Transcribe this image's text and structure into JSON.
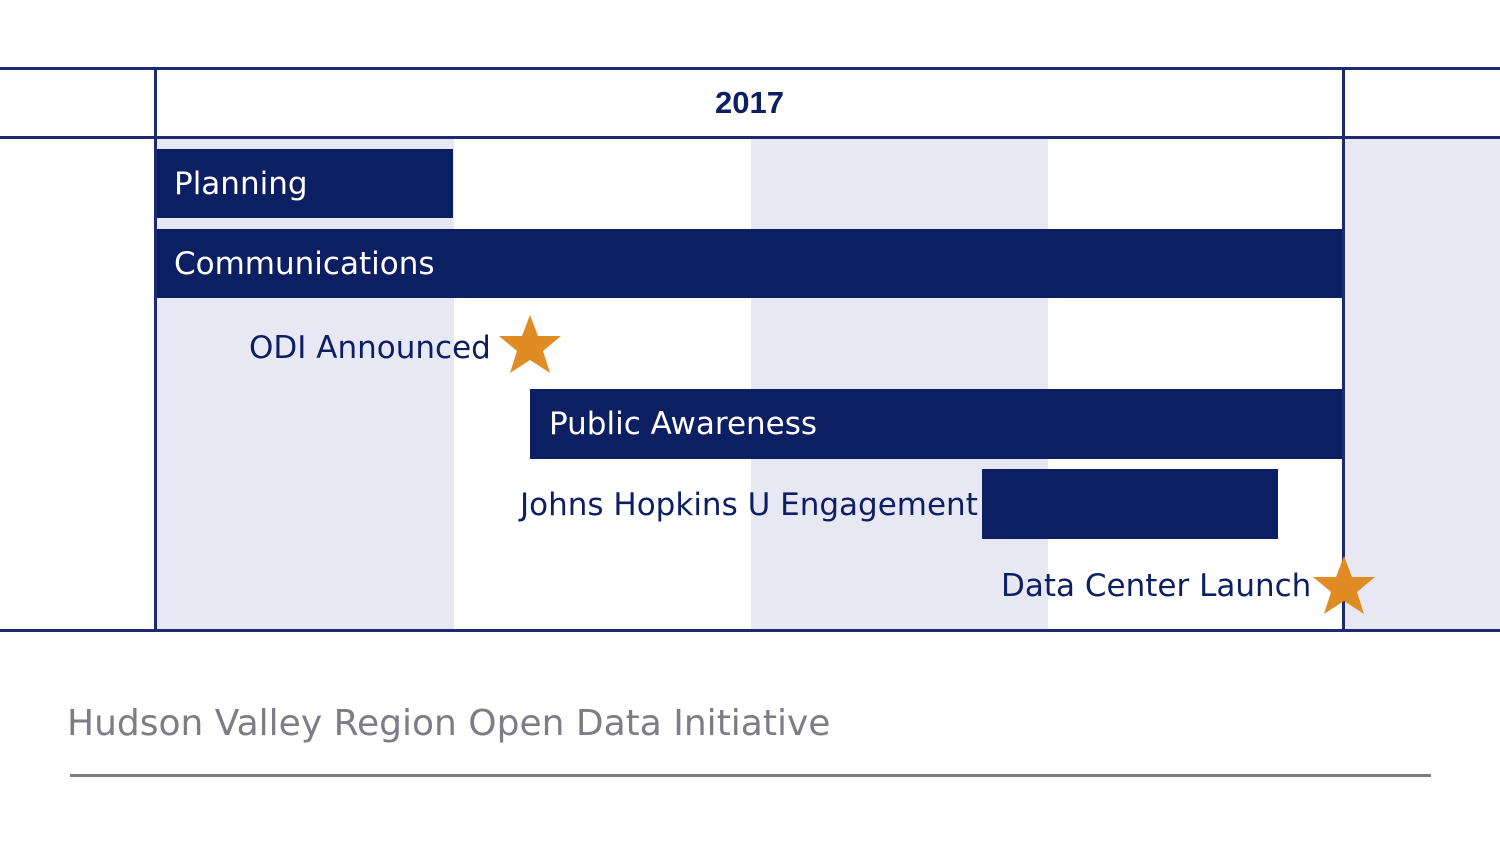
{
  "timeline": {
    "year_label": "2017",
    "tasks": [
      {
        "label": "Planning"
      },
      {
        "label": "Communications"
      },
      {
        "label": "Public Awareness"
      },
      {
        "label": "Johns Hopkins U Engagement"
      }
    ],
    "milestones": [
      {
        "label": "ODI Announced",
        "icon": "star-icon"
      },
      {
        "label": "Data Center Launch",
        "icon": "star-icon"
      }
    ]
  },
  "footer": {
    "title": "Hudson Valley Region Open Data Initiative"
  },
  "colors": {
    "bar": "#0d1f63",
    "grid": "#1e2a6e",
    "shade": "#e8e7f4",
    "star": "#e08b24",
    "footer_text": "#7e7c84"
  }
}
